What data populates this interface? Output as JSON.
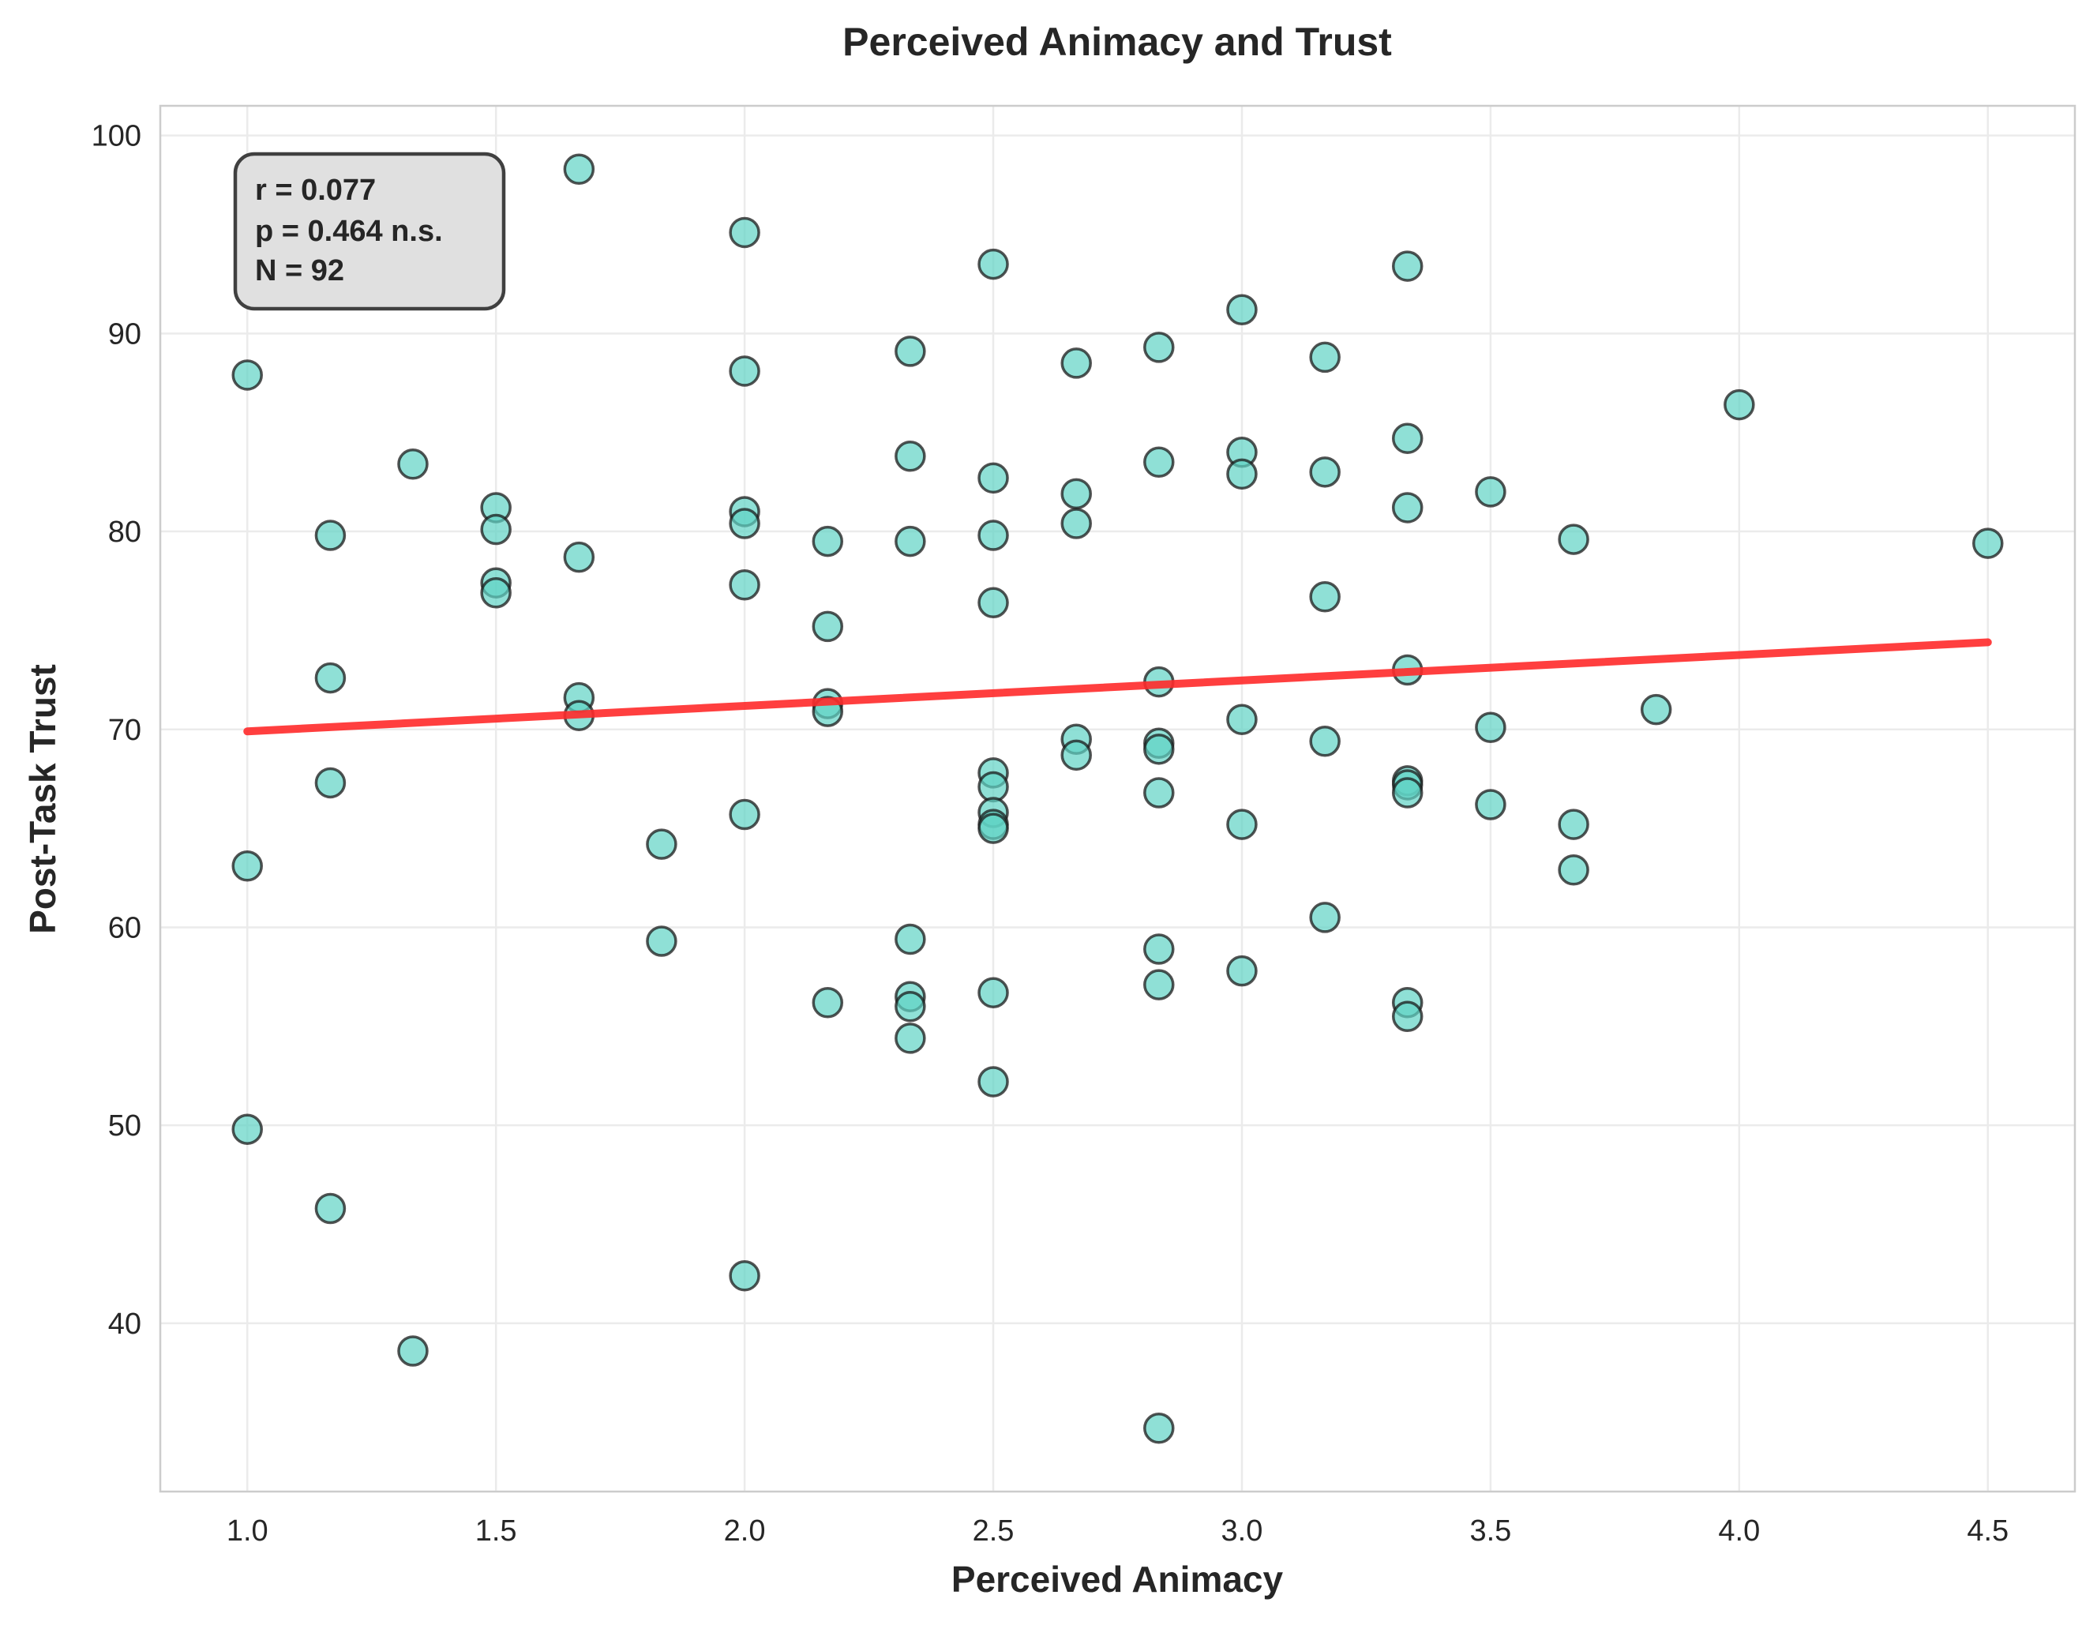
{
  "chart_data": {
    "type": "scatter",
    "title": "Perceived Animacy and Trust",
    "xlabel": "Perceived Animacy",
    "ylabel": "Post-Task Trust",
    "xlim": [
      0.825,
      4.675
    ],
    "ylim": [
      31.5,
      101.5
    ],
    "xticks": [
      "1.0",
      "1.5",
      "2.0",
      "2.5",
      "3.0",
      "3.5",
      "4.0",
      "4.5"
    ],
    "yticks": [
      "40",
      "50",
      "60",
      "70",
      "80",
      "90",
      "100"
    ],
    "grid": true,
    "points": [
      [
        1.0,
        87.9
      ],
      [
        1.0,
        63.1
      ],
      [
        1.0,
        49.8
      ],
      [
        1.167,
        79.8
      ],
      [
        1.167,
        72.6
      ],
      [
        1.167,
        67.3
      ],
      [
        1.167,
        45.8
      ],
      [
        1.333,
        83.4
      ],
      [
        1.333,
        38.6
      ],
      [
        1.5,
        81.2
      ],
      [
        1.5,
        80.1
      ],
      [
        1.5,
        77.4
      ],
      [
        1.5,
        76.9
      ],
      [
        1.667,
        98.3
      ],
      [
        1.667,
        78.7
      ],
      [
        1.667,
        71.6
      ],
      [
        1.667,
        70.7
      ],
      [
        1.833,
        64.2
      ],
      [
        1.833,
        59.3
      ],
      [
        2.0,
        95.1
      ],
      [
        2.0,
        88.1
      ],
      [
        2.0,
        81.0
      ],
      [
        2.0,
        80.4
      ],
      [
        2.0,
        77.3
      ],
      [
        2.0,
        65.7
      ],
      [
        2.0,
        42.4
      ],
      [
        2.167,
        79.5
      ],
      [
        2.167,
        75.2
      ],
      [
        2.167,
        71.3
      ],
      [
        2.167,
        70.9
      ],
      [
        2.167,
        56.2
      ],
      [
        2.333,
        89.1
      ],
      [
        2.333,
        83.8
      ],
      [
        2.333,
        79.5
      ],
      [
        2.333,
        59.4
      ],
      [
        2.333,
        56.5
      ],
      [
        2.333,
        56.0
      ],
      [
        2.333,
        54.4
      ],
      [
        2.5,
        93.5
      ],
      [
        2.5,
        82.7
      ],
      [
        2.5,
        79.8
      ],
      [
        2.5,
        76.4
      ],
      [
        2.5,
        67.8
      ],
      [
        2.5,
        67.1
      ],
      [
        2.5,
        65.8
      ],
      [
        2.5,
        65.2
      ],
      [
        2.5,
        65.0
      ],
      [
        2.5,
        56.7
      ],
      [
        2.5,
        52.2
      ],
      [
        2.667,
        88.5
      ],
      [
        2.667,
        81.9
      ],
      [
        2.667,
        80.4
      ],
      [
        2.667,
        69.5
      ],
      [
        2.667,
        68.7
      ],
      [
        2.833,
        89.3
      ],
      [
        2.833,
        83.5
      ],
      [
        2.833,
        72.4
      ],
      [
        2.833,
        69.3
      ],
      [
        2.833,
        69.0
      ],
      [
        2.833,
        66.8
      ],
      [
        2.833,
        58.9
      ],
      [
        2.833,
        57.1
      ],
      [
        2.833,
        34.7
      ],
      [
        3.0,
        91.2
      ],
      [
        3.0,
        84.0
      ],
      [
        3.0,
        82.9
      ],
      [
        3.0,
        70.5
      ],
      [
        3.0,
        65.2
      ],
      [
        3.0,
        57.8
      ],
      [
        3.167,
        88.8
      ],
      [
        3.167,
        83.0
      ],
      [
        3.167,
        76.7
      ],
      [
        3.167,
        69.4
      ],
      [
        3.167,
        60.5
      ],
      [
        3.333,
        93.4
      ],
      [
        3.333,
        84.7
      ],
      [
        3.333,
        81.2
      ],
      [
        3.333,
        73.0
      ],
      [
        3.333,
        67.4
      ],
      [
        3.333,
        67.2
      ],
      [
        3.333,
        66.8
      ],
      [
        3.333,
        56.2
      ],
      [
        3.333,
        55.5
      ],
      [
        3.5,
        82.0
      ],
      [
        3.5,
        70.1
      ],
      [
        3.5,
        66.2
      ],
      [
        3.667,
        79.6
      ],
      [
        3.667,
        65.2
      ],
      [
        3.667,
        62.9
      ],
      [
        3.833,
        71.0
      ],
      [
        4.0,
        86.4
      ],
      [
        4.5,
        79.4
      ]
    ],
    "regression_line": {
      "x": [
        1.0,
        4.5
      ],
      "y": [
        69.9,
        74.4
      ]
    },
    "stats_box": {
      "lines": [
        "r = 0.077",
        "p = 0.464 n.s.",
        "N = 92"
      ],
      "position": "top-left"
    },
    "colors": {
      "point_fill": "#5fd3c4",
      "point_edge": "#1a1a1a",
      "regression": "#ff2a2a",
      "grid": "#ebebeb",
      "axes_edge": "#cccccc",
      "stats_box_fill": "#e0e0e0",
      "stats_box_edge": "#404040"
    }
  }
}
